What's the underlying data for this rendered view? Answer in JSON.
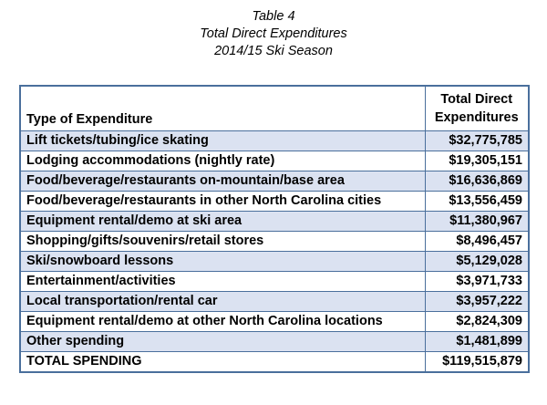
{
  "caption": {
    "line1": "Table 4",
    "line2": "Total Direct Expenditures",
    "line3": "2014/15 Ski Season"
  },
  "table": {
    "header_type": "Type of Expenditure",
    "header_amount_line1": "Total Direct",
    "header_amount_line2": "Expenditures",
    "rows": [
      {
        "label": "Lift tickets/tubing/ice skating",
        "amount": "$32,775,785"
      },
      {
        "label": "Lodging accommodations (nightly rate)",
        "amount": "$19,305,151"
      },
      {
        "label": "Food/beverage/restaurants on-mountain/base area",
        "amount": "$16,636,869"
      },
      {
        "label": "Food/beverage/restaurants in other North Carolina cities",
        "amount": "$13,556,459"
      },
      {
        "label": "Equipment rental/demo at ski area",
        "amount": "$11,380,967"
      },
      {
        "label": "Shopping/gifts/souvenirs/retail stores",
        "amount": "$8,496,457"
      },
      {
        "label": "Ski/snowboard lessons",
        "amount": "$5,129,028"
      },
      {
        "label": "Entertainment/activities",
        "amount": "$3,971,733"
      },
      {
        "label": "Local transportation/rental car",
        "amount": "$3,957,222"
      },
      {
        "label": "Equipment rental/demo at other North Carolina locations",
        "amount": "$2,824,309"
      },
      {
        "label": "Other spending",
        "amount": "$1,481,899"
      },
      {
        "label": "TOTAL SPENDING",
        "amount": "$119,515,879"
      }
    ]
  },
  "colors": {
    "border": "#4a6f9c",
    "shaded_row": "#dbe2f1",
    "plain_row": "#ffffff"
  }
}
